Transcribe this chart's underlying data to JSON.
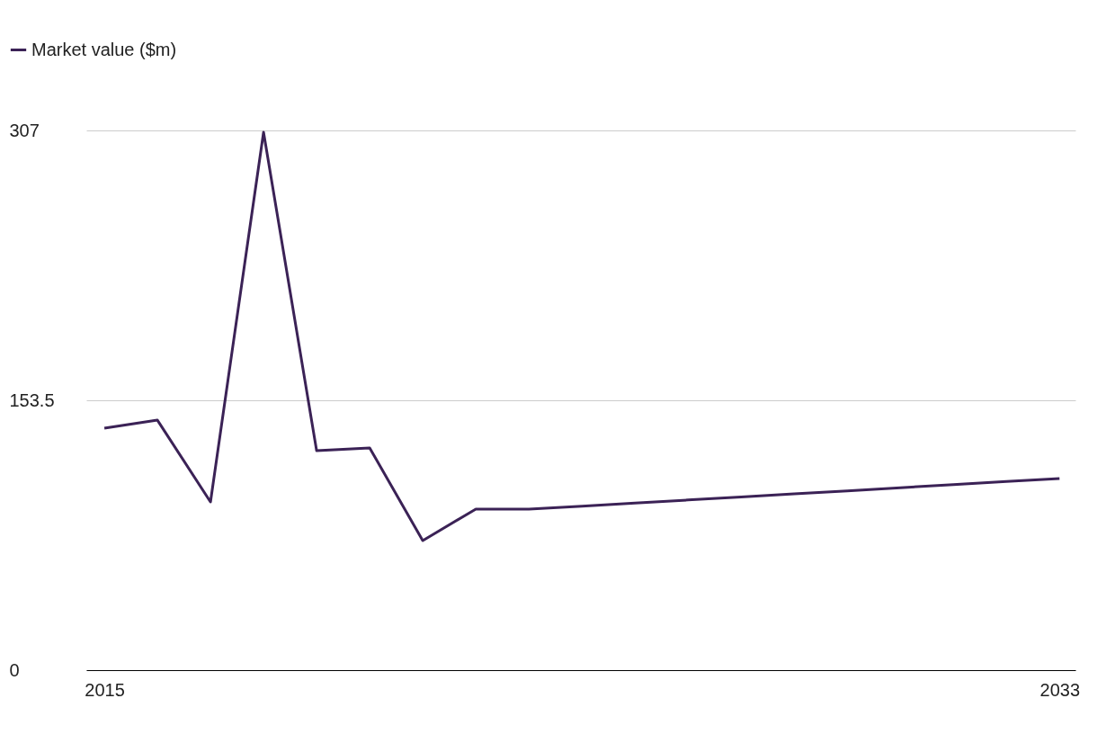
{
  "chart_data": {
    "type": "line",
    "x": [
      2015,
      2016,
      2017,
      2018,
      2019,
      2020,
      2021,
      2022,
      2023,
      2024,
      2025,
      2026,
      2027,
      2028,
      2029,
      2030,
      2031,
      2032,
      2033
    ],
    "series": [
      {
        "name": "Market value ($m)",
        "color": "#3b2256",
        "values": [
          137.6,
          142.2,
          95.7,
          306,
          124.9,
          126.4,
          73.7,
          91.6,
          91.6,
          93.3,
          95.0,
          96.8,
          98.5,
          100.3,
          102.0,
          103.8,
          105.5,
          107.3,
          109.0
        ]
      }
    ],
    "xlim": [
      2014.66,
      2033.3
    ],
    "xticks": [
      2015,
      2033
    ],
    "ylim": [
      0,
      307
    ],
    "yticks": [
      0,
      153.5,
      307
    ],
    "grid": "y",
    "legend": "top left",
    "marker": "none",
    "line_style": "solid"
  }
}
